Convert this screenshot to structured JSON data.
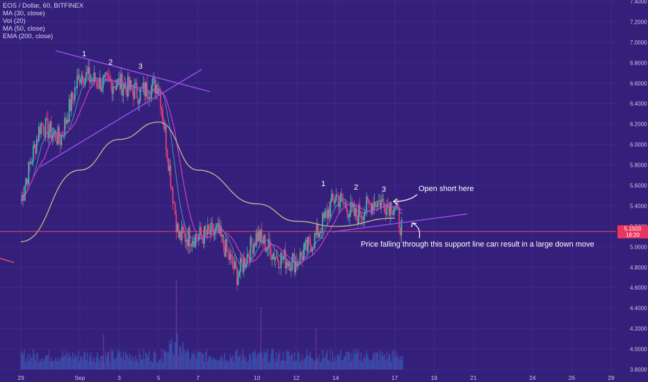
{
  "legend": {
    "symbol": "EOS / Dollar, 60, BITFINEX",
    "ma30": "MA (30, close)",
    "vol": "Vol (20)",
    "ma50": "MA (50, close)",
    "ema200": "EMA (200, close)"
  },
  "price_badge": {
    "value": "5.1503",
    "countdown": "18:20"
  },
  "annotations": {
    "open_short": "Open short here",
    "support_note": "Price falling through this support line can result in a large down move"
  },
  "colors": {
    "background": "#34207a",
    "candle_up": "#3fb6b0",
    "candle_down": "#e0407a",
    "ma30": "#4f8fc0",
    "ma50": "#d63ac8",
    "ema200": "#c9b98a",
    "trendline": "#9c4ff0",
    "price_line": "#ff4d6d",
    "badge": "#e8365f",
    "volume": "#3a6fd0"
  },
  "chart_data": {
    "type": "line",
    "instrument": "EOS / Dollar",
    "timeframe": "60",
    "exchange": "BITFINEX",
    "x_ticks": [
      "29",
      "Sep",
      "3",
      "5",
      "7",
      "10",
      "12",
      "14",
      "17",
      "19",
      "21",
      "24",
      "26",
      "28"
    ],
    "y_ticks": [
      "3.8000",
      "4.0000",
      "4.2000",
      "4.4000",
      "4.6000",
      "4.8000",
      "5.0000",
      "5.2000",
      "5.4000",
      "5.6000",
      "5.8000",
      "6.0000",
      "6.2000",
      "6.4000",
      "6.6000",
      "6.8000",
      "7.0000",
      "7.2000",
      "7.4000"
    ],
    "ylim": [
      3.8,
      7.4
    ],
    "last_price": 5.1503,
    "series": [
      {
        "name": "price",
        "points": [
          [
            "29",
            5.45
          ],
          [
            "30",
            6.2
          ],
          [
            "31",
            6.05
          ],
          [
            "Sep",
            6.7
          ],
          [
            "2",
            6.6
          ],
          [
            "3",
            6.6
          ],
          [
            "4",
            6.5
          ],
          [
            "5",
            6.6
          ],
          [
            "6",
            5.1
          ],
          [
            "7",
            5.1
          ],
          [
            "8",
            5.15
          ],
          [
            "9",
            4.72
          ],
          [
            "10",
            5.12
          ],
          [
            "11",
            4.9
          ],
          [
            "12",
            4.85
          ],
          [
            "13",
            5.1
          ],
          [
            "14",
            5.5
          ],
          [
            "15",
            5.3
          ],
          [
            "16",
            5.45
          ],
          [
            "17",
            5.4
          ],
          [
            "17.5",
            5.15
          ]
        ]
      },
      {
        "name": "EMA (200, close)",
        "points": [
          [
            "29",
            5.05
          ],
          [
            "Sep",
            5.75
          ],
          [
            "3",
            6.05
          ],
          [
            "5",
            6.22
          ],
          [
            "7",
            5.75
          ],
          [
            "10",
            5.42
          ],
          [
            "12",
            5.25
          ],
          [
            "14",
            5.2
          ],
          [
            "17",
            5.28
          ]
        ]
      }
    ],
    "wave_labels": [
      "1",
      "2",
      "3",
      "1",
      "2",
      "3"
    ]
  }
}
